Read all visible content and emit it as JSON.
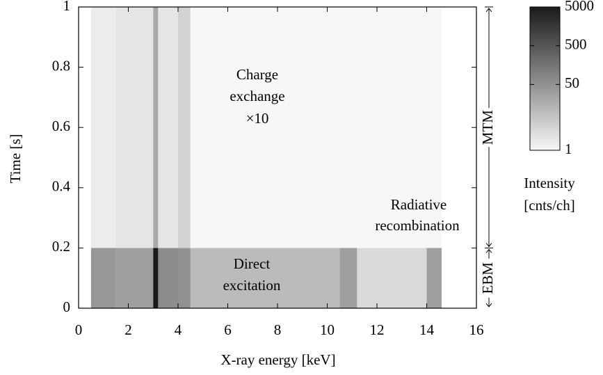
{
  "chart_data": {
    "type": "heatmap",
    "xlabel": "X-ray energy [keV]",
    "ylabel": "Time [s]",
    "x_bins": [
      0.5,
      1.5,
      3.0,
      3.2,
      4.0,
      4.5,
      10.5,
      11.2,
      14.0,
      14.6
    ],
    "y_bins": [
      0,
      0.2,
      1
    ],
    "z": [
      [
        40,
        30,
        5000,
        60,
        50,
        10,
        30,
        3,
        30
      ],
      [
        1.5,
        2,
        20,
        2,
        4,
        1,
        1,
        1,
        1
      ]
    ],
    "xlim": [
      0,
      16
    ],
    "xticks": [
      0,
      2,
      4,
      6,
      8,
      10,
      12,
      14,
      16
    ],
    "ylim": [
      0,
      1
    ],
    "yticks": [
      0,
      0.2,
      0.4,
      0.6,
      0.8,
      1
    ],
    "colorbar": {
      "log": true,
      "clim": [
        1,
        5000
      ],
      "ticks": [
        1,
        50,
        500,
        5000
      ],
      "label": [
        "Intensity",
        "[cnts/ch]"
      ]
    },
    "annotations": [
      [
        "Charge",
        "exchange",
        "×10"
      ],
      [
        "Direct",
        "excitation"
      ],
      [
        "Radiative",
        "recombination"
      ]
    ],
    "phases": [
      {
        "label": "MTM",
        "range": [
          0.2,
          1
        ]
      },
      {
        "label": "EBM",
        "range": [
          0,
          0.2
        ]
      }
    ]
  }
}
